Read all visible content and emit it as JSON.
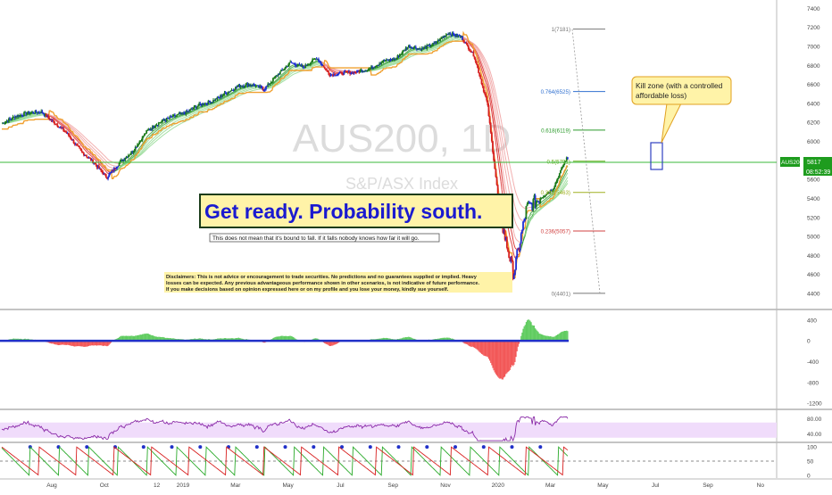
{
  "watermark": {
    "symbol": "AUS200, 1D",
    "name": "S&P/ASX Index"
  },
  "headline": "Get ready. Probability south.",
  "subnote": "This does not mean that it's bound to fall. If it falls nobody knows how far it will go.",
  "disclaimer": [
    "Disclaimers: This is not advice or encouragement to trade securities. No predictions and no guarantees supplied or implied. Heavy",
    "losses can be expected. Any previous advantageous performance shown in other scenarios, is not indicative of future performance.",
    "If you make decisions based on opinion expressed here or on my profile and you lose your money, kindly sue yourself."
  ],
  "callout": [
    "Kill zone (with a controlled",
    "affordable loss)"
  ],
  "price_badge": {
    "symbol": "AUS200",
    "price": "5817",
    "time": "08:52:39"
  },
  "colors": {
    "up": "#1b7a1b",
    "down": "#d62020",
    "blue": "#1f2fd6",
    "orange": "#f0a030",
    "callout_bg": "#fff3a8"
  },
  "chart_data": [
    {
      "type": "line",
      "title": "AUS200, 1D",
      "subtitle": "S&P/ASX Index",
      "x_ticks": [
        "Aug",
        "Oct",
        "12",
        "2019",
        "Mar",
        "May",
        "Jul",
        "Sep",
        "Nov",
        "2020",
        "Mar",
        "May",
        "Jul",
        "Sep",
        "No"
      ],
      "y_ticks": [
        "7400",
        "7200",
        "7000",
        "6800",
        "6600",
        "6400",
        "6200",
        "6000",
        "5800",
        "5600",
        "5400",
        "5200",
        "5000",
        "4800",
        "4600",
        "4400"
      ],
      "ylim": [
        4250,
        7450
      ],
      "months_per_tick": [
        0.0,
        2.0,
        4.0,
        5.0,
        7.0,
        9.0,
        11.0,
        13.0,
        15.0,
        17.0,
        19.0,
        21.0,
        23.0,
        25.0,
        27.0
      ],
      "series": [
        {
          "x": [
            0,
            0.5,
            1,
            1.5,
            2,
            2.5,
            3,
            3.5,
            4,
            4.5,
            5,
            5.5,
            6,
            6.5,
            7,
            7.5,
            8,
            8.5,
            9,
            9.5,
            10,
            10.5,
            11,
            11.5,
            12,
            12.5,
            13,
            13.5,
            14,
            14.5,
            15,
            15.5,
            16,
            16.5,
            17,
            17.5,
            18,
            18.5,
            19,
            19.5,
            20,
            20.5,
            21,
            21.5
          ],
          "values": [
            6190,
            6260,
            6300,
            6310,
            6200,
            6080,
            5900,
            5780,
            5620,
            5780,
            5900,
            6100,
            6200,
            6260,
            6300,
            6380,
            6420,
            6500,
            6580,
            6600,
            6550,
            6700,
            6830,
            6780,
            6880,
            6700,
            6720,
            6730,
            6760,
            6840,
            6870,
            7000,
            6970,
            7030,
            7140,
            7100,
            6900,
            6400,
            5200,
            4600,
            5300,
            5400,
            5500,
            5817
          ]
        }
      ],
      "fibonacci": [
        {
          "label": "1(7181)",
          "value": 7181
        },
        {
          "label": "0.764(6525)",
          "value": 6525
        },
        {
          "label": "0.618(6119)",
          "value": 6119
        },
        {
          "label": "0.5(5791)",
          "value": 5791
        },
        {
          "label": "0.382(5463)",
          "value": 5463
        },
        {
          "label": "0.236(5057)",
          "value": 5057
        },
        {
          "label": "0(4401)",
          "value": 4401
        }
      ]
    },
    {
      "type": "bar",
      "title": "",
      "y_ticks": [
        "400",
        "0",
        "-400",
        "-800",
        "-1200"
      ],
      "ylim": [
        -1300,
        550
      ]
    },
    {
      "type": "line",
      "title": "",
      "y_ticks": [
        "80.00",
        "40.00"
      ],
      "ylim": [
        20,
        100
      ]
    },
    {
      "type": "line",
      "title": "",
      "y_ticks": [
        "100",
        "50",
        "0"
      ],
      "ylim": [
        -10,
        110
      ]
    }
  ]
}
